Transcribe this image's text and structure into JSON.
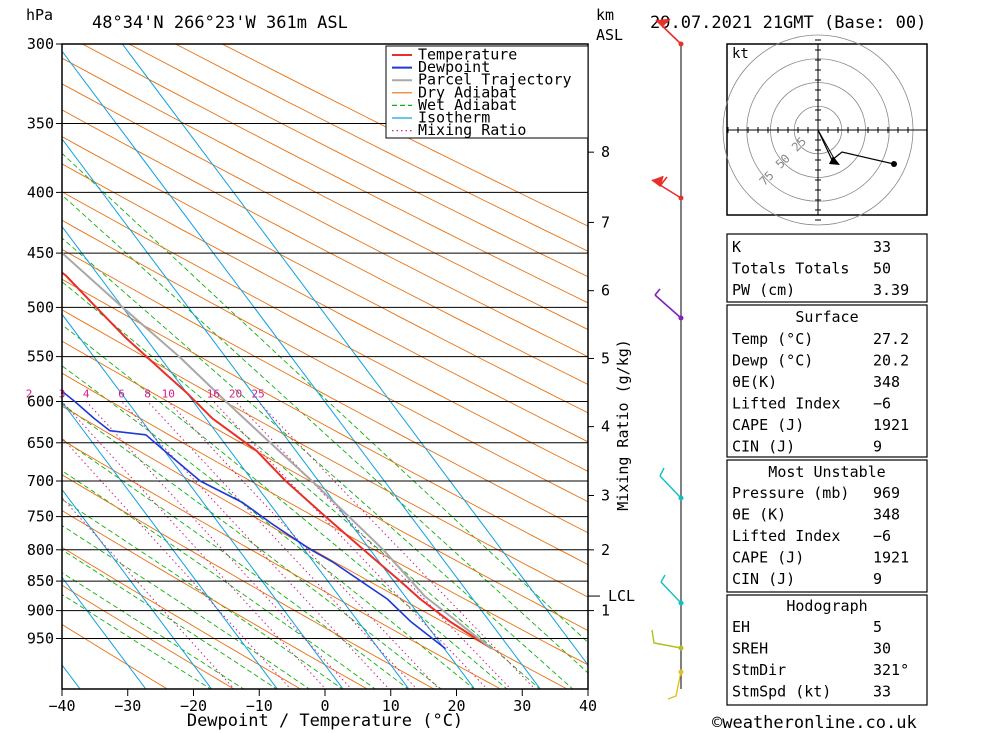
{
  "header": {
    "hpa_unit": "hPa",
    "km_unit": "km",
    "asl": "ASL",
    "location": "48°34'N  266°23'W  361m  ASL",
    "datetime": "29.07.2021  21GMT  (Base: 00)"
  },
  "footer": {
    "credit": "©weatheronline.co.uk"
  },
  "colors": {
    "temperature": "#e8302a",
    "dewpoint": "#2038d8",
    "parcel": "#a8a8a8",
    "dry_adiabat": "#e87010",
    "wet_adiabat": "#10b010",
    "isotherm": "#10a0e0",
    "mixing_ratio": "#d0208a"
  },
  "chart_data": {
    "type": "line",
    "xlabel": "Dewpoint / Temperature (°C)",
    "x_ticks": [
      "−40",
      "−30",
      "−20",
      "−10",
      "0",
      "10",
      "20",
      "30",
      "40"
    ],
    "x_values": [
      -40,
      -30,
      -20,
      -10,
      0,
      10,
      20,
      30,
      40
    ],
    "pressure_levels": [
      300,
      350,
      400,
      450,
      500,
      550,
      600,
      650,
      700,
      750,
      800,
      850,
      900,
      950
    ],
    "pressure_labels": [
      "300",
      "350",
      "400",
      "450",
      "500",
      "550",
      "600",
      "650",
      "700",
      "750",
      "800",
      "850",
      "900",
      "950"
    ],
    "ylim_hpa": [
      300,
      1000
    ],
    "y_scale": "log",
    "km_ticks": [
      {
        "label": "8",
        "p": 370
      },
      {
        "label": "7",
        "p": 424
      },
      {
        "label": "6",
        "p": 484
      },
      {
        "label": "5",
        "p": 552
      },
      {
        "label": "4",
        "p": 630
      },
      {
        "label": "3",
        "p": 720
      },
      {
        "label": "2",
        "p": 800
      },
      {
        "label": "1",
        "p": 900
      }
    ],
    "lcl": {
      "label": "LCL",
      "p": 875
    },
    "mixing_ratio_axis": "Mixing Ratio (g/kg)",
    "mixing_ratio_values": [
      "1",
      "2",
      "3",
      "4",
      "6",
      "8",
      "10",
      "16",
      "20",
      "25"
    ],
    "legend": [
      "Temperature",
      "Dewpoint",
      "Parcel Trajectory",
      "Dry Adiabat",
      "Wet Adiabat",
      "Isotherm",
      "Mixing Ratio"
    ],
    "series": [
      {
        "name": "Temperature",
        "points": [
          [
            27.2,
            969
          ],
          [
            24,
            920
          ],
          [
            22,
            880
          ],
          [
            21,
            850
          ],
          [
            19,
            800
          ],
          [
            17,
            750
          ],
          [
            15,
            700
          ],
          [
            14,
            660
          ],
          [
            11,
            620
          ],
          [
            10,
            590
          ],
          [
            9,
            570
          ],
          [
            7,
            530
          ],
          [
            6,
            500
          ],
          [
            5,
            470
          ],
          [
            3,
            450
          ],
          [
            1,
            420
          ],
          [
            -2,
            400
          ],
          [
            -4,
            380
          ],
          [
            -5,
            370
          ],
          [
            -7,
            350
          ],
          [
            -10,
            320
          ],
          [
            -14,
            300
          ]
        ]
      },
      {
        "name": "Dewpoint",
        "points": [
          [
            20.2,
            969
          ],
          [
            18,
            920
          ],
          [
            17,
            880
          ],
          [
            15,
            850
          ],
          [
            13,
            820
          ],
          [
            11,
            800
          ],
          [
            8,
            760
          ],
          [
            6,
            730
          ],
          [
            2,
            700
          ],
          [
            0,
            660
          ],
          [
            -1,
            640
          ],
          [
            -6,
            635
          ],
          [
            -7,
            620
          ],
          [
            -8,
            600
          ],
          [
            -9,
            585
          ],
          [
            -10,
            570
          ],
          [
            -10,
            555
          ],
          [
            -34,
            550
          ],
          [
            -6,
            545
          ],
          [
            -6,
            530
          ],
          [
            -3,
            525
          ],
          [
            -13,
            510
          ],
          [
            -11,
            500
          ],
          [
            -4,
            490
          ],
          [
            -14,
            470
          ],
          [
            -12,
            460
          ],
          [
            -5,
            450
          ],
          [
            -28,
            445
          ],
          [
            -17,
            420
          ],
          [
            -5,
            400
          ],
          [
            -4,
            385
          ],
          [
            -9,
            370
          ],
          [
            -17,
            350
          ],
          [
            -21,
            340
          ],
          [
            -24,
            300
          ]
        ]
      },
      {
        "name": "Parcel Trajectory",
        "points": [
          [
            27.2,
            969
          ],
          [
            23,
            875
          ],
          [
            22,
            800
          ],
          [
            19,
            700
          ],
          [
            17,
            650
          ],
          [
            15,
            600
          ],
          [
            13,
            550
          ],
          [
            10,
            500
          ],
          [
            7,
            450
          ],
          [
            3,
            400
          ],
          [
            -2,
            360
          ]
        ]
      }
    ]
  },
  "hodograph": {
    "unit": "kt",
    "rings": [
      "25",
      "50",
      "75"
    ]
  },
  "indices_table": [
    {
      "label": "K",
      "value": "33"
    },
    {
      "label": "Totals Totals",
      "value": "50"
    },
    {
      "label": "PW (cm)",
      "value": "3.39"
    }
  ],
  "surface_table": {
    "title": "Surface",
    "rows": [
      {
        "label": "Temp (°C)",
        "value": "27.2"
      },
      {
        "label": "Dewp (°C)",
        "value": "20.2"
      },
      {
        "label": "θE(K)",
        "value": "348"
      },
      {
        "label": "Lifted Index",
        "value": "−6"
      },
      {
        "label": "CAPE (J)",
        "value": "1921"
      },
      {
        "label": "CIN (J)",
        "value": "9"
      }
    ]
  },
  "unstable_table": {
    "title": "Most Unstable",
    "rows": [
      {
        "label": "Pressure (mb)",
        "value": "969"
      },
      {
        "label": "θE (K)",
        "value": "348"
      },
      {
        "label": "Lifted Index",
        "value": "−6"
      },
      {
        "label": "CAPE (J)",
        "value": "1921"
      },
      {
        "label": "CIN (J)",
        "value": "9"
      }
    ]
  },
  "hodograph_table": {
    "title": "Hodograph",
    "rows": [
      {
        "label": "EH",
        "value": "5"
      },
      {
        "label": "SREH",
        "value": "30"
      },
      {
        "label": "StmDir",
        "value": "321°"
      },
      {
        "label": "StmSpd (kt)",
        "value": "33"
      }
    ]
  }
}
